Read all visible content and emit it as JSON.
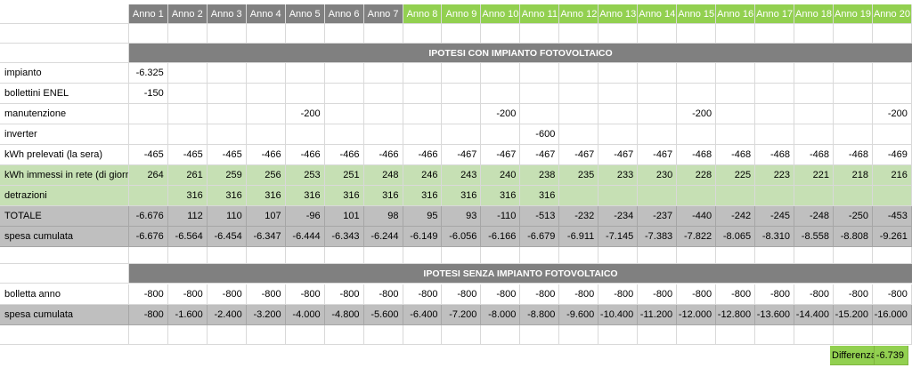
{
  "years": [
    "Anno 1",
    "Anno 2",
    "Anno 3",
    "Anno 4",
    "Anno 5",
    "Anno 6",
    "Anno 7",
    "Anno 8",
    "Anno 9",
    "Anno 10",
    "Anno 11",
    "Anno 12",
    "Anno 13",
    "Anno 14",
    "Anno 15",
    "Anno 16",
    "Anno 17",
    "Anno 18",
    "Anno 19",
    "Anno 20"
  ],
  "colors": {
    "header_gray": "#808080",
    "header_green": "#92d050",
    "row_green": "#c6e0b4",
    "row_gray": "#bfbfbf"
  },
  "con": {
    "title": "IPOTESI CON IMPIANTO FOTOVOLTAICO",
    "rows": [
      {
        "label": "impianto",
        "style": "white",
        "values": [
          "-6.325",
          "",
          "",
          "",
          "",
          "",
          "",
          "",
          "",
          "",
          "",
          "",
          "",
          "",
          "",
          "",
          "",
          "",
          "",
          ""
        ]
      },
      {
        "label": "bollettini ENEL",
        "style": "white",
        "values": [
          "-150",
          "",
          "",
          "",
          "",
          "",
          "",
          "",
          "",
          "",
          "",
          "",
          "",
          "",
          "",
          "",
          "",
          "",
          "",
          ""
        ]
      },
      {
        "label": "manutenzione",
        "style": "white",
        "values": [
          "",
          "",
          "",
          "",
          "-200",
          "",
          "",
          "",
          "",
          "-200",
          "",
          "",
          "",
          "",
          "-200",
          "",
          "",
          "",
          "",
          "-200"
        ]
      },
      {
        "label": "inverter",
        "style": "white",
        "values": [
          "",
          "",
          "",
          "",
          "",
          "",
          "",
          "",
          "",
          "",
          "-600",
          "",
          "",
          "",
          "",
          "",
          "",
          "",
          "",
          ""
        ]
      },
      {
        "label": "kWh prelevati (la sera)",
        "style": "white",
        "values": [
          "-465",
          "-465",
          "-465",
          "-466",
          "-466",
          "-466",
          "-466",
          "-466",
          "-467",
          "-467",
          "-467",
          "-467",
          "-467",
          "-467",
          "-468",
          "-468",
          "-468",
          "-468",
          "-468",
          "-469"
        ]
      },
      {
        "label": "kWh immessi in rete (di giorno)",
        "style": "green",
        "values": [
          "264",
          "261",
          "259",
          "256",
          "253",
          "251",
          "248",
          "246",
          "243",
          "240",
          "238",
          "235",
          "233",
          "230",
          "228",
          "225",
          "223",
          "221",
          "218",
          "216"
        ]
      },
      {
        "label": "detrazioni",
        "style": "green",
        "values": [
          "",
          "316",
          "316",
          "316",
          "316",
          "316",
          "316",
          "316",
          "316",
          "316",
          "316",
          "",
          "",
          "",
          "",
          "",
          "",
          "",
          "",
          ""
        ]
      },
      {
        "label": "TOTALE",
        "style": "gray",
        "values": [
          "-6.676",
          "112",
          "110",
          "107",
          "-96",
          "101",
          "98",
          "95",
          "93",
          "-110",
          "-513",
          "-232",
          "-234",
          "-237",
          "-440",
          "-242",
          "-245",
          "-248",
          "-250",
          "-453"
        ]
      },
      {
        "label": "spesa cumulata",
        "style": "gray",
        "values": [
          "-6.676",
          "-6.564",
          "-6.454",
          "-6.347",
          "-6.444",
          "-6.343",
          "-6.244",
          "-6.149",
          "-6.056",
          "-6.166",
          "-6.679",
          "-6.911",
          "-7.145",
          "-7.383",
          "-7.822",
          "-8.065",
          "-8.310",
          "-8.558",
          "-8.808",
          "-9.261"
        ]
      }
    ]
  },
  "senza": {
    "title": "IPOTESI SENZA IMPIANTO FOTOVOLTAICO",
    "rows": [
      {
        "label": "bolletta anno",
        "style": "white",
        "values": [
          "-800",
          "-800",
          "-800",
          "-800",
          "-800",
          "-800",
          "-800",
          "-800",
          "-800",
          "-800",
          "-800",
          "-800",
          "-800",
          "-800",
          "-800",
          "-800",
          "-800",
          "-800",
          "-800",
          "-800"
        ]
      },
      {
        "label": "spesa cumulata",
        "style": "gray",
        "values": [
          "-800",
          "-1.600",
          "-2.400",
          "-3.200",
          "-4.000",
          "-4.800",
          "-5.600",
          "-6.400",
          "-7.200",
          "-8.000",
          "-8.800",
          "-9.600",
          "-10.400",
          "-11.200",
          "-12.000",
          "-12.800",
          "-13.600",
          "-14.400",
          "-15.200",
          "-16.000"
        ]
      }
    ]
  },
  "difference": {
    "label": "Differenza",
    "value": "-6.739"
  }
}
